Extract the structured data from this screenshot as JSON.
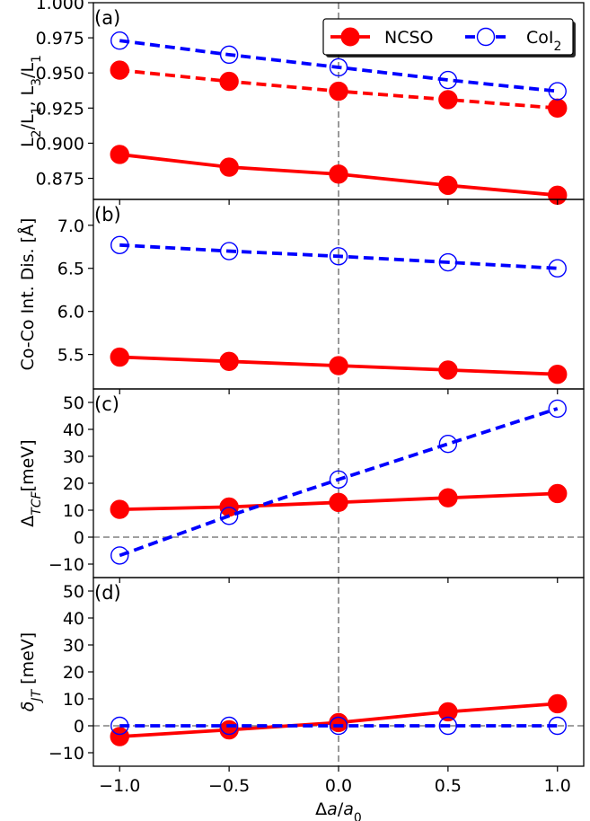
{
  "chart_data": [
    {
      "panel": "(a)",
      "type": "line",
      "x": [
        -1.0,
        -0.5,
        0.0,
        0.5,
        1.0
      ],
      "ylabel": "L2/L1, L3/L1",
      "ylim": [
        0.86,
        1.0
      ],
      "yticks": [
        0.875,
        0.9,
        0.925,
        0.95,
        0.975,
        1.0
      ],
      "ytick_labels": [
        "0.875",
        "0.900",
        "0.925",
        "0.950",
        "0.975",
        "1.000"
      ],
      "series": [
        {
          "name": "NCSO",
          "style": "solid",
          "marker": "filled",
          "values": [
            0.892,
            0.883,
            0.878,
            0.87,
            0.863
          ]
        },
        {
          "name": "NCSO",
          "style": "dashed",
          "marker": "filled",
          "values": [
            0.952,
            0.944,
            0.937,
            0.931,
            0.925
          ]
        },
        {
          "name": "CoI2",
          "style": "dashed",
          "marker": "open",
          "values": [
            0.973,
            0.963,
            0.954,
            0.945,
            0.937
          ]
        }
      ],
      "legend": {
        "location": "top-right",
        "entries": [
          "NCSO",
          "CoI2"
        ]
      }
    },
    {
      "panel": "(b)",
      "type": "line",
      "x": [
        -1.0,
        -0.5,
        0.0,
        0.5,
        1.0
      ],
      "ylabel": "Co-Co Int. Dis. [Å]",
      "ylim": [
        5.1,
        7.3
      ],
      "yticks": [
        5.5,
        6.0,
        6.5,
        7.0
      ],
      "ytick_labels": [
        "5.5",
        "6.0",
        "6.5",
        "7.0"
      ],
      "series": [
        {
          "name": "NCSO",
          "style": "solid",
          "marker": "filled",
          "values": [
            5.47,
            5.42,
            5.37,
            5.32,
            5.27
          ]
        },
        {
          "name": "CoI2",
          "style": "dashed",
          "marker": "open",
          "values": [
            6.77,
            6.7,
            6.64,
            6.57,
            6.5
          ]
        }
      ]
    },
    {
      "panel": "(c)",
      "type": "line",
      "x": [
        -1.0,
        -0.5,
        0.0,
        0.5,
        1.0
      ],
      "ylabel": "ΔTCF[meV]",
      "ylim": [
        -15,
        55
      ],
      "yticks": [
        -10,
        0,
        10,
        20,
        30,
        40,
        50
      ],
      "ytick_labels": [
        "−10",
        "0",
        "10",
        "20",
        "30",
        "40",
        "50"
      ],
      "hline": 0,
      "series": [
        {
          "name": "NCSO",
          "style": "solid",
          "marker": "filled",
          "values": [
            10.3,
            11.2,
            12.9,
            14.6,
            16.2
          ]
        },
        {
          "name": "CoI2",
          "style": "dashed",
          "marker": "open",
          "values": [
            -6.8,
            7.9,
            21.4,
            34.6,
            47.7
          ]
        }
      ]
    },
    {
      "panel": "(d)",
      "type": "line",
      "x": [
        -1.0,
        -0.5,
        0.0,
        0.5,
        1.0
      ],
      "xlabel": "Δa/a0",
      "ylabel": "δJT [meV]",
      "ylim": [
        -15,
        55
      ],
      "yticks": [
        -10,
        0,
        10,
        20,
        30,
        40,
        50
      ],
      "ytick_labels": [
        "−10",
        "0",
        "10",
        "20",
        "30",
        "40",
        "50"
      ],
      "hline": 0,
      "series": [
        {
          "name": "NCSO",
          "style": "solid",
          "marker": "filled",
          "values": [
            -4.0,
            -1.5,
            1.2,
            5.2,
            8.2
          ]
        },
        {
          "name": "CoI2",
          "style": "dashed",
          "marker": "open",
          "values": [
            0.0,
            0.0,
            0.0,
            0.0,
            0.0
          ]
        }
      ]
    }
  ],
  "x_axis": {
    "xlim": [
      -1.12,
      1.12
    ],
    "ticks": [
      -1.0,
      -0.5,
      0.0,
      0.5,
      1.0
    ],
    "tick_labels": [
      "−1.0",
      "−0.5",
      "0.0",
      "0.5",
      "1.0"
    ],
    "vline": 0.0
  },
  "colors": {
    "NCSO": "#ff0000",
    "CoI2": "#0000ff",
    "guide": "#808080"
  }
}
